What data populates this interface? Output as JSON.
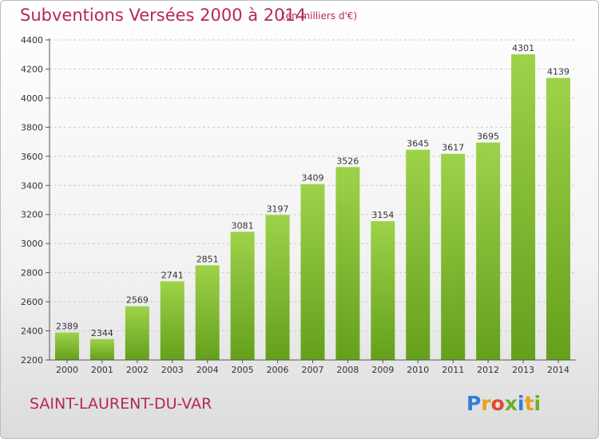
{
  "title": "Subventions Versées 2000 à 2014",
  "subtitle": "(en milliers d'€)",
  "location": "SAINT-LAURENT-DU-VAR",
  "brand": {
    "text": "Proxiti",
    "letters": [
      "P",
      "r",
      "o",
      "x",
      "i",
      "t",
      "i"
    ],
    "colors": [
      "#2e7fd6",
      "#e8a11a",
      "#e04a2f",
      "#6fae2a",
      "#2e7fd6",
      "#e8a11a",
      "#6fae2a"
    ]
  },
  "colors": {
    "accent": "#b5294f",
    "bar_light": "#9ed24a",
    "bar_dark": "#64a01c",
    "grid": "#cccccc"
  },
  "chart_data": {
    "type": "bar",
    "categories": [
      "2000",
      "2001",
      "2002",
      "2003",
      "2004",
      "2005",
      "2006",
      "2007",
      "2008",
      "2009",
      "2010",
      "2011",
      "2012",
      "2013",
      "2014"
    ],
    "values": [
      2389,
      2344,
      2569,
      2741,
      2851,
      3081,
      3197,
      3409,
      3526,
      3154,
      3645,
      3617,
      3695,
      4301,
      4139
    ],
    "value_labels": [
      "2389",
      "2344",
      "2569",
      "2741",
      "2851",
      "3081",
      "3197",
      "3409",
      "3526",
      "3154",
      "3645",
      "3617",
      "3695",
      "4301",
      "4139"
    ],
    "yticks": [
      2200,
      2400,
      2600,
      2800,
      3000,
      3200,
      3400,
      3600,
      3800,
      4000,
      4200,
      4400
    ],
    "ytick_labels": [
      "2200",
      "2400",
      "2600",
      "2800",
      "3000",
      "3200",
      "3400",
      "3600",
      "3800",
      "4000",
      "4200",
      "4400"
    ],
    "ylim": [
      2200,
      4400
    ],
    "grid": true,
    "title": "Subventions Versées 2000 à 2014",
    "xlabel": "",
    "ylabel": ""
  }
}
